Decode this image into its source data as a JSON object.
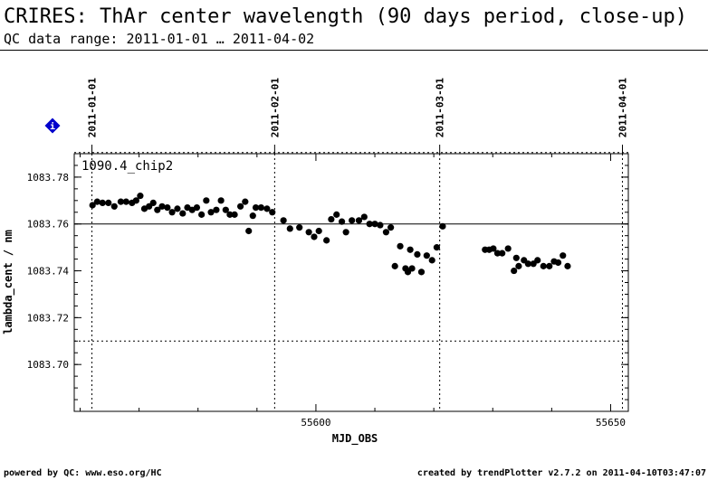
{
  "header": {
    "title": "CRIRES: ThAr center wavelength (90 days period, close-up)",
    "subtitle": "QC data range: 2011-01-01 … 2011-04-02"
  },
  "footer": {
    "left": "powered by QC: www.eso.org/HC",
    "right": "created by trendPlotter v2.7.2 on 2011-04-10T03:47:07"
  },
  "info_icon": {
    "label": "i",
    "color": "#0000cc",
    "name": "info-diamond-icon"
  },
  "chart_data": {
    "type": "scatter",
    "series_label": "1090.4_chip2",
    "xlabel": "MJD_OBS",
    "ylabel": "lambda_cent / nm",
    "xlim": [
      55559,
      55653
    ],
    "ylim": [
      1083.68,
      1083.79
    ],
    "xticks": [
      55600,
      55650
    ],
    "xtick_labels": [
      "55600",
      "55650"
    ],
    "yticks": [
      1083.7,
      1083.72,
      1083.74,
      1083.76,
      1083.78
    ],
    "ytick_labels": [
      "1083.70",
      "1083.72",
      "1083.74",
      "1083.76",
      "1083.78"
    ],
    "reference_line": 1083.76,
    "threshold_lines": [
      1083.71,
      1083.7905
    ],
    "date_markers": [
      {
        "mjd": 55562,
        "label": "2011-01-01"
      },
      {
        "mjd": 55593,
        "label": "2011-02-01"
      },
      {
        "mjd": 55621,
        "label": "2011-03-01"
      },
      {
        "mjd": 55652,
        "label": "2011-04-01"
      }
    ],
    "points": [
      [
        55562.1,
        1083.768
      ],
      [
        55562.9,
        1083.7695
      ],
      [
        55563.8,
        1083.769
      ],
      [
        55564.8,
        1083.769
      ],
      [
        55565.8,
        1083.7675
      ],
      [
        55566.9,
        1083.7695
      ],
      [
        55567.8,
        1083.7695
      ],
      [
        55568.8,
        1083.769
      ],
      [
        55569.5,
        1083.77
      ],
      [
        55570.2,
        1083.772
      ],
      [
        55570.9,
        1083.7665
      ],
      [
        55571.7,
        1083.7675
      ],
      [
        55572.4,
        1083.769
      ],
      [
        55573.1,
        1083.766
      ],
      [
        55573.9,
        1083.7675
      ],
      [
        55574.8,
        1083.767
      ],
      [
        55575.6,
        1083.765
      ],
      [
        55576.5,
        1083.7665
      ],
      [
        55577.4,
        1083.7645
      ],
      [
        55578.2,
        1083.767
      ],
      [
        55579.0,
        1083.766
      ],
      [
        55579.8,
        1083.767
      ],
      [
        55580.6,
        1083.764
      ],
      [
        55581.4,
        1083.77
      ],
      [
        55582.2,
        1083.765
      ],
      [
        55583.1,
        1083.766
      ],
      [
        55583.9,
        1083.77
      ],
      [
        55584.7,
        1083.766
      ],
      [
        55585.4,
        1083.764
      ],
      [
        55586.2,
        1083.764
      ],
      [
        55587.2,
        1083.7675
      ],
      [
        55588.0,
        1083.7695
      ],
      [
        55588.6,
        1083.757
      ],
      [
        55589.3,
        1083.7635
      ],
      [
        55589.8,
        1083.767
      ],
      [
        55590.7,
        1083.767
      ],
      [
        55591.7,
        1083.7665
      ],
      [
        55592.6,
        1083.765
      ],
      [
        55594.5,
        1083.7615
      ],
      [
        55595.6,
        1083.758
      ],
      [
        55597.2,
        1083.7585
      ],
      [
        55598.8,
        1083.7565
      ],
      [
        55599.7,
        1083.7545
      ],
      [
        55600.5,
        1083.757
      ],
      [
        55601.8,
        1083.753
      ],
      [
        55602.6,
        1083.762
      ],
      [
        55603.5,
        1083.764
      ],
      [
        55604.4,
        1083.761
      ],
      [
        55605.1,
        1083.7565
      ],
      [
        55606.1,
        1083.7615
      ],
      [
        55607.3,
        1083.7615
      ],
      [
        55608.2,
        1083.763
      ],
      [
        55609.1,
        1083.76
      ],
      [
        55610.0,
        1083.76
      ],
      [
        55610.9,
        1083.7595
      ],
      [
        55611.9,
        1083.7565
      ],
      [
        55612.7,
        1083.7585
      ],
      [
        55613.4,
        1083.742
      ],
      [
        55614.3,
        1083.7505
      ],
      [
        55615.2,
        1083.741
      ],
      [
        55615.6,
        1083.7395
      ],
      [
        55616.0,
        1083.749
      ],
      [
        55616.3,
        1083.741
      ],
      [
        55617.2,
        1083.747
      ],
      [
        55617.9,
        1083.7395
      ],
      [
        55618.8,
        1083.7465
      ],
      [
        55619.7,
        1083.7445
      ],
      [
        55620.5,
        1083.75
      ],
      [
        55621.5,
        1083.759
      ],
      [
        55628.7,
        1083.749
      ],
      [
        55629.4,
        1083.749
      ],
      [
        55630.1,
        1083.7495
      ],
      [
        55630.8,
        1083.7475
      ],
      [
        55631.6,
        1083.7475
      ],
      [
        55632.6,
        1083.7495
      ],
      [
        55633.6,
        1083.74
      ],
      [
        55634.0,
        1083.7455
      ],
      [
        55634.4,
        1083.742
      ],
      [
        55635.3,
        1083.7445
      ],
      [
        55636.0,
        1083.743
      ],
      [
        55636.9,
        1083.743
      ],
      [
        55637.6,
        1083.7445
      ],
      [
        55638.6,
        1083.742
      ],
      [
        55639.6,
        1083.742
      ],
      [
        55640.4,
        1083.744
      ],
      [
        55641.1,
        1083.7435
      ],
      [
        55641.9,
        1083.7465
      ],
      [
        55642.7,
        1083.742
      ]
    ]
  }
}
